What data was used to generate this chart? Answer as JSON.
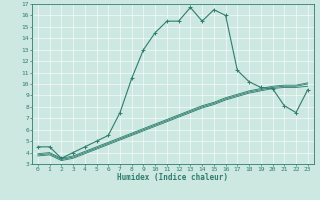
{
  "xlabel": "Humidex (Indice chaleur)",
  "bg_color": "#cce8e0",
  "line_color": "#2e7d6e",
  "xlim": [
    -0.5,
    23.5
  ],
  "ylim": [
    3,
    17
  ],
  "xticks": [
    0,
    1,
    2,
    3,
    4,
    5,
    6,
    7,
    8,
    9,
    10,
    11,
    12,
    13,
    14,
    15,
    16,
    17,
    18,
    19,
    20,
    21,
    22,
    23
  ],
  "yticks": [
    3,
    4,
    5,
    6,
    7,
    8,
    9,
    10,
    11,
    12,
    13,
    14,
    15,
    16,
    17
  ],
  "curve1_x": [
    0,
    1,
    2,
    3,
    4,
    5,
    6,
    7,
    8,
    9,
    10,
    11,
    12,
    13,
    14,
    15,
    16,
    17,
    18,
    19,
    20,
    21,
    22,
    23
  ],
  "curve1_y": [
    4.5,
    4.5,
    3.5,
    4.0,
    4.5,
    5.0,
    5.5,
    7.5,
    10.5,
    13.0,
    14.5,
    15.5,
    15.5,
    16.7,
    15.5,
    16.5,
    16.0,
    11.2,
    10.2,
    9.7,
    9.6,
    8.1,
    7.5,
    9.5
  ],
  "curve2_x": [
    0,
    1,
    2,
    3,
    4,
    5,
    6,
    7,
    8,
    9,
    10,
    11,
    12,
    13,
    14,
    15,
    16,
    17,
    18,
    19,
    20,
    21,
    22,
    23
  ],
  "curve2_y": [
    3.7,
    3.8,
    3.3,
    3.5,
    3.9,
    4.3,
    4.7,
    5.1,
    5.5,
    5.9,
    6.3,
    6.7,
    7.1,
    7.5,
    7.9,
    8.2,
    8.6,
    8.9,
    9.2,
    9.4,
    9.6,
    9.7,
    9.7,
    9.8
  ],
  "curve3_x": [
    0,
    1,
    2,
    3,
    4,
    5,
    6,
    7,
    8,
    9,
    10,
    11,
    12,
    13,
    14,
    15,
    16,
    17,
    18,
    19,
    20,
    21,
    22,
    23
  ],
  "curve3_y": [
    3.8,
    3.9,
    3.4,
    3.6,
    4.0,
    4.4,
    4.8,
    5.2,
    5.6,
    6.0,
    6.4,
    6.8,
    7.2,
    7.6,
    8.0,
    8.3,
    8.7,
    9.0,
    9.3,
    9.5,
    9.7,
    9.8,
    9.8,
    10.0
  ],
  "curve4_x": [
    0,
    1,
    2,
    3,
    4,
    5,
    6,
    7,
    8,
    9,
    10,
    11,
    12,
    13,
    14,
    15,
    16,
    17,
    18,
    19,
    20,
    21,
    22,
    23
  ],
  "curve4_y": [
    3.9,
    4.0,
    3.5,
    3.7,
    4.1,
    4.5,
    4.9,
    5.3,
    5.7,
    6.1,
    6.5,
    6.9,
    7.3,
    7.7,
    8.1,
    8.4,
    8.8,
    9.1,
    9.4,
    9.6,
    9.8,
    9.9,
    9.9,
    10.1
  ]
}
